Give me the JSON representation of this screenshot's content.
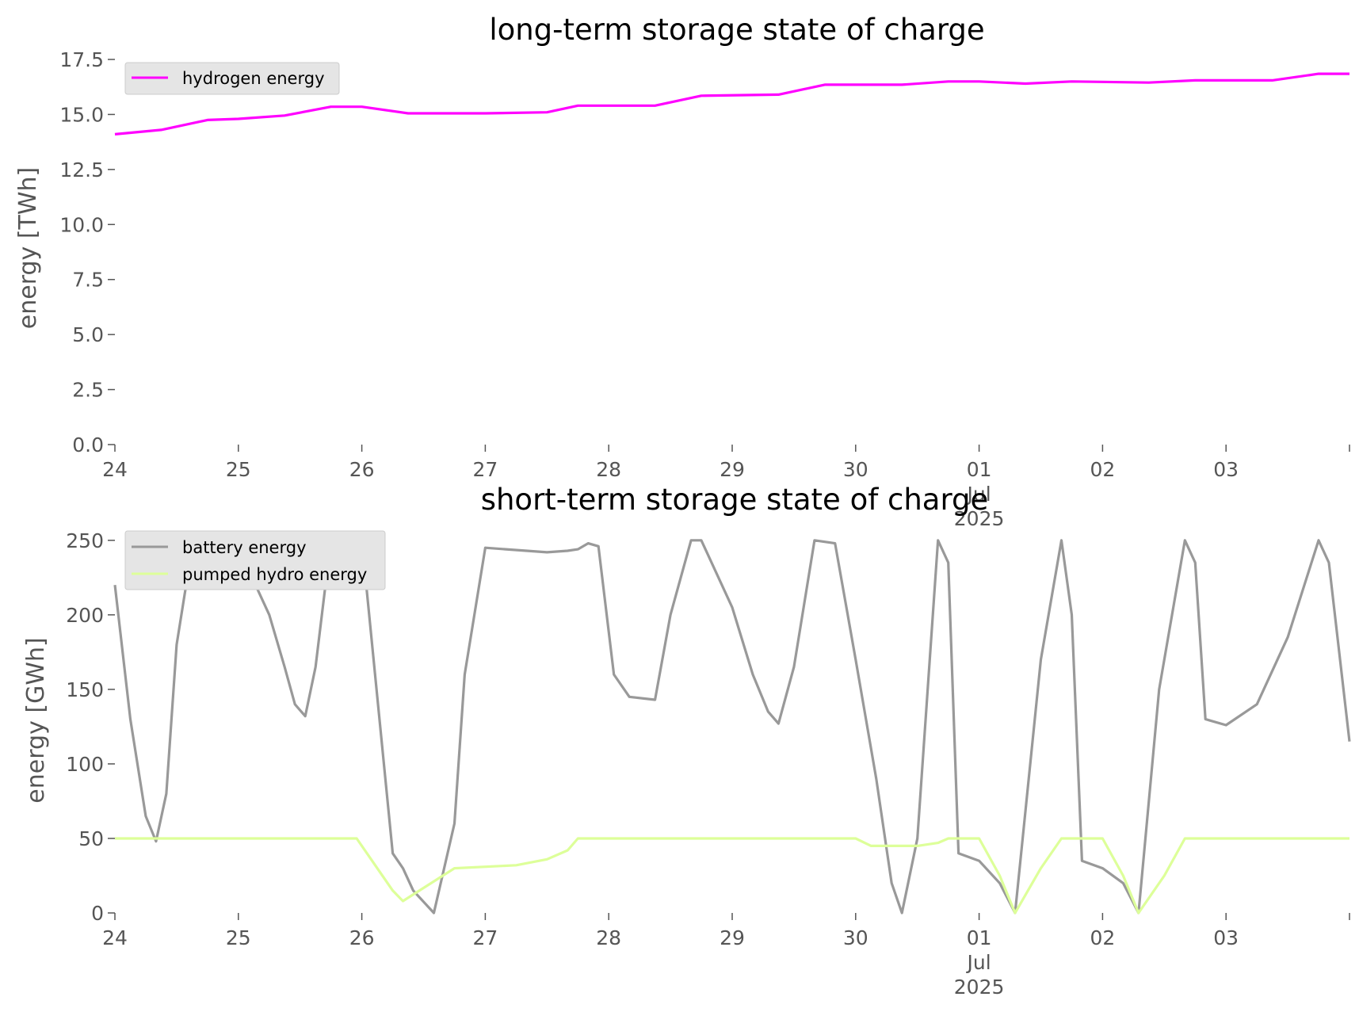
{
  "chart_data": [
    {
      "type": "line",
      "title": "long-term storage state of charge",
      "xlabel": "",
      "ylabel": "energy [TWh]",
      "ylim": [
        0,
        17.5
      ],
      "xlim": [
        "2025-06-24",
        "2025-07-04"
      ],
      "grid": false,
      "legend_position": "top-left",
      "yticks": [
        0.0,
        2.5,
        5.0,
        7.5,
        10.0,
        12.5,
        15.0,
        17.5
      ],
      "ytick_labels": [
        "0.0",
        "2.5",
        "5.0",
        "7.5",
        "10.0",
        "12.5",
        "15.0",
        "17.5"
      ],
      "xticks": [
        "2025-06-24",
        "2025-06-25",
        "2025-06-26",
        "2025-06-27",
        "2025-06-28",
        "2025-06-29",
        "2025-06-30",
        "2025-07-01",
        "2025-07-02",
        "2025-07-03",
        "2025-07-04"
      ],
      "xtick_labels": [
        "24",
        "25",
        "26",
        "27",
        "28",
        "29",
        "30",
        "01\nJul\n2025",
        "02",
        "03",
        ""
      ],
      "series": [
        {
          "name": "hydrogen energy",
          "color": "#ff00ff",
          "x": [
            "2025-06-24 00:00",
            "2025-06-24 09:00",
            "2025-06-24 18:00",
            "2025-06-25 00:00",
            "2025-06-25 09:00",
            "2025-06-25 18:00",
            "2025-06-26 00:00",
            "2025-06-26 09:00",
            "2025-06-27 00:00",
            "2025-06-27 12:00",
            "2025-06-27 18:00",
            "2025-06-28 09:00",
            "2025-06-28 18:00",
            "2025-06-29 09:00",
            "2025-06-29 18:00",
            "2025-06-30 09:00",
            "2025-06-30 18:00",
            "2025-07-01 00:00",
            "2025-07-01 09:00",
            "2025-07-01 18:00",
            "2025-07-02 09:00",
            "2025-07-02 18:00",
            "2025-07-03 09:00",
            "2025-07-03 18:00",
            "2025-07-04 00:00"
          ],
          "y": [
            14.1,
            14.3,
            14.75,
            14.8,
            14.95,
            15.35,
            15.35,
            15.05,
            15.05,
            15.1,
            15.4,
            15.4,
            15.85,
            15.9,
            16.35,
            16.35,
            16.5,
            16.5,
            16.4,
            16.5,
            16.45,
            16.55,
            16.55,
            16.85,
            16.85
          ]
        }
      ]
    },
    {
      "type": "line",
      "title": "short-term storage state of charge",
      "xlabel": "",
      "ylabel": "energy [GWh]",
      "ylim": [
        0,
        260
      ],
      "xlim": [
        "2025-06-24",
        "2025-07-04"
      ],
      "grid": false,
      "legend_position": "top-left",
      "yticks": [
        0,
        50,
        100,
        150,
        200,
        250
      ],
      "ytick_labels": [
        "0",
        "50",
        "100",
        "150",
        "200",
        "250"
      ],
      "xticks": [
        "2025-06-24",
        "2025-06-25",
        "2025-06-26",
        "2025-06-27",
        "2025-06-28",
        "2025-06-29",
        "2025-06-30",
        "2025-07-01",
        "2025-07-02",
        "2025-07-03",
        "2025-07-04"
      ],
      "xtick_labels": [
        "24",
        "25",
        "26",
        "27",
        "28",
        "29",
        "30",
        "01\nJul\n2025",
        "02",
        "03",
        ""
      ],
      "series": [
        {
          "name": "battery energy",
          "color": "#999999",
          "x": [
            "2025-06-24 00:00",
            "2025-06-24 03:00",
            "2025-06-24 06:00",
            "2025-06-24 08:00",
            "2025-06-24 10:00",
            "2025-06-24 12:00",
            "2025-06-24 15:00",
            "2025-06-24 18:00",
            "2025-06-25 00:00",
            "2025-06-25 06:00",
            "2025-06-25 09:00",
            "2025-06-25 11:00",
            "2025-06-25 13:00",
            "2025-06-25 15:00",
            "2025-06-25 18:00",
            "2025-06-26 00:00",
            "2025-06-26 06:00",
            "2025-06-26 08:00",
            "2025-06-26 10:00",
            "2025-06-26 14:00",
            "2025-06-26 18:00",
            "2025-06-26 20:00",
            "2025-06-27 00:00",
            "2025-06-27 12:00",
            "2025-06-27 16:00",
            "2025-06-27 18:00",
            "2025-06-27 20:00",
            "2025-06-27 22:00",
            "2025-06-28 01:00",
            "2025-06-28 04:00",
            "2025-06-28 09:00",
            "2025-06-28 12:00",
            "2025-06-28 16:00",
            "2025-06-28 18:00",
            "2025-06-29 00:00",
            "2025-06-29 04:00",
            "2025-06-29 07:00",
            "2025-06-29 09:00",
            "2025-06-29 12:00",
            "2025-06-29 16:00",
            "2025-06-29 20:00",
            "2025-06-30 00:00",
            "2025-06-30 04:00",
            "2025-06-30 07:00",
            "2025-06-30 09:00",
            "2025-06-30 12:00",
            "2025-06-30 16:00",
            "2025-06-30 18:00",
            "2025-06-30 20:00",
            "2025-07-01 00:00",
            "2025-07-01 04:00",
            "2025-07-01 07:00",
            "2025-07-01 12:00",
            "2025-07-01 16:00",
            "2025-07-01 18:00",
            "2025-07-01 20:00",
            "2025-07-02 00:00",
            "2025-07-02 04:00",
            "2025-07-02 07:00",
            "2025-07-02 11:00",
            "2025-07-02 16:00",
            "2025-07-02 18:00",
            "2025-07-02 20:00",
            "2025-07-03 00:00",
            "2025-07-03 06:00",
            "2025-07-03 12:00",
            "2025-07-03 18:00",
            "2025-07-03 20:00",
            "2025-07-04 00:00"
          ],
          "y": [
            220,
            130,
            65,
            48,
            80,
            180,
            245,
            250,
            245,
            200,
            165,
            140,
            132,
            165,
            250,
            250,
            40,
            30,
            15,
            0,
            60,
            160,
            245,
            242,
            243,
            244,
            248,
            246,
            160,
            145,
            143,
            200,
            250,
            250,
            205,
            160,
            135,
            127,
            165,
            250,
            248,
            170,
            90,
            20,
            0,
            50,
            250,
            235,
            40,
            35,
            20,
            0,
            170,
            250,
            200,
            35,
            30,
            20,
            0,
            150,
            250,
            235,
            130,
            126,
            140,
            185,
            250,
            235,
            115
          ]
        },
        {
          "name": "pumped hydro energy",
          "color": "#ddff99",
          "x": [
            "2025-06-24 00:00",
            "2025-06-25 23:00",
            "2025-06-26 02:00",
            "2025-06-26 06:00",
            "2025-06-26 08:00",
            "2025-06-26 18:00",
            "2025-06-27 06:00",
            "2025-06-27 12:00",
            "2025-06-27 16:00",
            "2025-06-27 18:00",
            "2025-06-28 00:00",
            "2025-06-29 18:00",
            "2025-06-30 00:00",
            "2025-06-30 03:00",
            "2025-06-30 12:00",
            "2025-06-30 16:00",
            "2025-06-30 18:00",
            "2025-07-01 00:00",
            "2025-07-01 04:00",
            "2025-07-01 07:00",
            "2025-07-01 12:00",
            "2025-07-01 16:00",
            "2025-07-01 18:00",
            "2025-07-02 00:00",
            "2025-07-02 04:00",
            "2025-07-02 07:00",
            "2025-07-02 12:00",
            "2025-07-02 16:00",
            "2025-07-02 18:00",
            "2025-07-03 00:00",
            "2025-07-04 00:00"
          ],
          "y": [
            50,
            50,
            35,
            15,
            8,
            30,
            32,
            36,
            42,
            50,
            50,
            50,
            50,
            45,
            45,
            47,
            50,
            50,
            25,
            0,
            30,
            50,
            50,
            50,
            25,
            0,
            25,
            50,
            50,
            50,
            50
          ]
        }
      ]
    }
  ]
}
